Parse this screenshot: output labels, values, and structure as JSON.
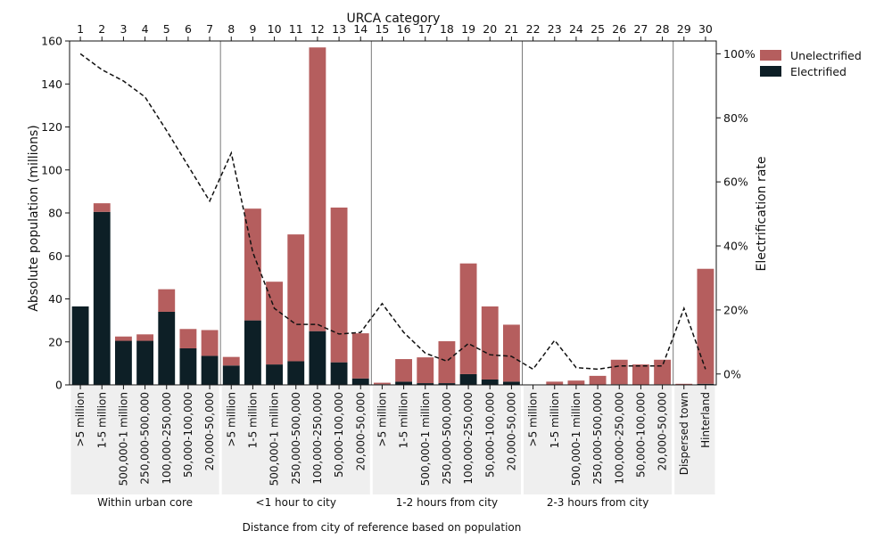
{
  "chart_data": {
    "type": "bar",
    "stacked": true,
    "title": "",
    "top_axis_label": "URCA category",
    "x": [
      1,
      2,
      3,
      4,
      5,
      6,
      7,
      8,
      9,
      10,
      11,
      12,
      13,
      14,
      15,
      16,
      17,
      18,
      19,
      20,
      21,
      22,
      23,
      24,
      25,
      26,
      27,
      28,
      29,
      30
    ],
    "categories": [
      ">5 million",
      "1-5 million",
      "500,000-1 million",
      "250,000-500,000",
      "100,000-250,000",
      "50,000-100,000",
      "20,000-50,000",
      ">5 million",
      "1-5 million",
      "500,000-1 million",
      "250,000-500,000",
      "100,000-250,000",
      "50,000-100,000",
      "20,000-50,000",
      ">5 million",
      "1-5 million",
      "500,000-1 million",
      "250,000-500,000",
      "100,000-250,000",
      "50,000-100,000",
      "20,000-50,000",
      ">5 million",
      "1-5 million",
      "500,000-1 million",
      "250,000-500,000",
      "100,000-250,000",
      "50,000-100,000",
      "20,000-50,000",
      "Dispersed town",
      "Hinterland"
    ],
    "groups": [
      {
        "label": "Within urban core",
        "start": 0,
        "end": 6
      },
      {
        "label": "<1 hour to city",
        "start": 7,
        "end": 13
      },
      {
        "label": "1-2 hours from city",
        "start": 14,
        "end": 20
      },
      {
        "label": "2-3 hours from city",
        "start": 21,
        "end": 27
      },
      {
        "label": "",
        "start": 28,
        "end": 29
      }
    ],
    "group_axis_label": "Distance from city of reference based on population",
    "series": [
      {
        "name": "Electrified",
        "color": "#0d1f26",
        "values": [
          36.5,
          80.5,
          20.5,
          20.5,
          34,
          17,
          13.5,
          9,
          30,
          9.5,
          11,
          25,
          10.5,
          3,
          0.3,
          1.5,
          0.8,
          0.8,
          5,
          2.5,
          1.5,
          0,
          0.2,
          0.1,
          0.2,
          0.3,
          0.2,
          0.3,
          0.1,
          0.5
        ]
      },
      {
        "name": "Unelectrified",
        "color": "#b55e5e",
        "values": [
          0,
          4,
          2,
          3,
          10.5,
          9,
          12,
          4,
          52,
          38.5,
          59,
          132,
          72,
          21,
          0.7,
          10.5,
          12,
          19.5,
          51.5,
          34,
          26.5,
          0.2,
          1.3,
          1.9,
          4,
          11.4,
          9.3,
          11.4,
          0.4,
          53.5
        ]
      }
    ],
    "electrification_rate": {
      "name": "Electrification rate",
      "style": "dashed",
      "values": [
        100,
        95,
        91.5,
        86.5,
        76,
        65,
        54,
        69,
        38,
        20.5,
        15.5,
        15.5,
        12.5,
        13,
        22,
        13,
        6.5,
        4,
        9.5,
        6,
        5.5,
        1.5,
        10.5,
        2,
        1.5,
        2.5,
        2.5,
        2.5,
        20.5,
        1.5
      ]
    },
    "ylabel": "Absolute population (millions)",
    "ylim": [
      0,
      160
    ],
    "yticks": [
      0,
      20,
      40,
      60,
      80,
      100,
      120,
      140,
      160
    ],
    "y2label": "Electrification rate",
    "y2lim": [
      -3.4,
      104
    ],
    "y2ticks": [
      "0%",
      "20%",
      "40%",
      "60%",
      "80%",
      "100%"
    ],
    "legend": {
      "placement": "top-right, outside plot",
      "entries": [
        "Unelectrified",
        "Electrified"
      ]
    },
    "grid": false
  }
}
